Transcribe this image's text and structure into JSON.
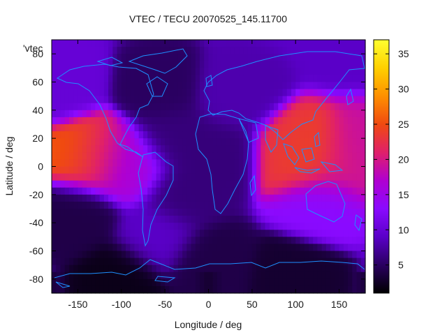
{
  "chart_data": {
    "type": "heatmap",
    "title": "VTEC / TECU 20070525_145.11700",
    "key_label": "'vtec",
    "xlabel": "Longitude / deg",
    "ylabel": "Latitude / deg",
    "xlim": [
      -180,
      180
    ],
    "ylim": [
      -90,
      90
    ],
    "x_ticks": [
      -150,
      -100,
      -50,
      0,
      50,
      100,
      150
    ],
    "y_ticks": [
      80,
      60,
      40,
      20,
      0,
      -20,
      -40,
      -60,
      -80
    ],
    "colorbar": {
      "range": [
        1,
        37
      ],
      "ticks": [
        5,
        10,
        15,
        20,
        25,
        30,
        35
      ],
      "palette": [
        "#000000",
        "#2a0060",
        "#5a00c8",
        "#8a0aff",
        "#b000d0",
        "#e0206a",
        "#f04a10",
        "#ff9000",
        "#ffd000",
        "#ffff30"
      ]
    },
    "grid": false,
    "background_level": 9,
    "regions": [
      {
        "lon": -140,
        "lat": 7,
        "value": 26
      },
      {
        "lon": -120,
        "lat": 5,
        "value": 18
      },
      {
        "lon": -90,
        "lat": 0,
        "value": 16
      },
      {
        "lon": -55,
        "lat": 55,
        "value": 5
      },
      {
        "lon": -40,
        "lat": 20,
        "value": 6
      },
      {
        "lon": -30,
        "lat": -20,
        "value": 6
      },
      {
        "lon": 10,
        "lat": 10,
        "value": 6
      },
      {
        "lon": 30,
        "lat": 50,
        "value": 8
      },
      {
        "lon": 100,
        "lat": 10,
        "value": 23
      },
      {
        "lon": 120,
        "lat": 5,
        "value": 25
      },
      {
        "lon": 150,
        "lat": 0,
        "value": 20
      },
      {
        "lon": 170,
        "lat": 8,
        "value": 19
      },
      {
        "lon": 130,
        "lat": -25,
        "value": 13
      },
      {
        "lon": -150,
        "lat": -35,
        "value": 4
      },
      {
        "lon": -170,
        "lat": 60,
        "value": 10
      },
      {
        "lon": 0,
        "lat": -70,
        "value": 4
      },
      {
        "lon": -100,
        "lat": -80,
        "value": 2
      },
      {
        "lon": 100,
        "lat": -80,
        "value": 3
      },
      {
        "lon": -60,
        "lat": -50,
        "value": 9
      }
    ]
  }
}
